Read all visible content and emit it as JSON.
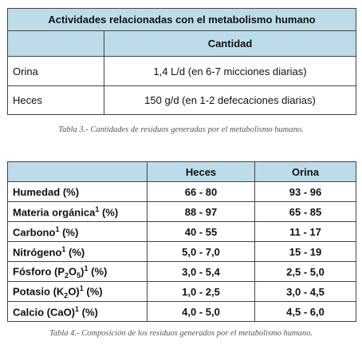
{
  "table1": {
    "title": "Actividades relacionadas con el metabolismo humano",
    "header": "Cantidad",
    "rows": [
      [
        "Orina",
        "1,4 L/d (en 6-7 micciones diarias)"
      ],
      [
        "Heces",
        "150 g/d (en 1-2 defecaciones diarias)"
      ]
    ],
    "caption": "Tabla 3.- Cantidades de residuos generadas por el metabolismo humano."
  },
  "table2": {
    "columns": [
      "Heces",
      "Orina"
    ],
    "rows": [
      {
        "label": [
          "Humedad (%)"
        ],
        "values": [
          "66 - 80",
          "93 - 96"
        ]
      },
      {
        "label": [
          "Materia orgánica",
          "1",
          " (%)"
        ],
        "values": [
          "88 - 97",
          "65 - 85"
        ]
      },
      {
        "label": [
          "Carbono",
          "1",
          " (%)"
        ],
        "values": [
          "40 - 55",
          "11 - 17"
        ]
      },
      {
        "label": [
          "Nitrógeno",
          "1",
          " (%)"
        ],
        "values": [
          "5,0 - 7,0",
          "15 - 19"
        ]
      },
      {
        "label": [
          "Fósforo (P",
          "2",
          "O",
          "5",
          ")",
          "1",
          " (%)"
        ],
        "values": [
          "3,0 - 5,4",
          "2,5 - 5,0"
        ]
      },
      {
        "label": [
          "Potasio (K",
          "2",
          "O)",
          "1",
          " (%)"
        ],
        "values": [
          "1,0 - 2,5",
          "3,0 - 4,5"
        ]
      },
      {
        "label": [
          "Calcio (CaO)",
          "1",
          " (%)"
        ],
        "values": [
          "4,0 - 5,0",
          "4,5 - 6,0"
        ]
      }
    ],
    "caption": "Tabla 4.- Composición de los residuos generados por el metabolismo humano."
  }
}
